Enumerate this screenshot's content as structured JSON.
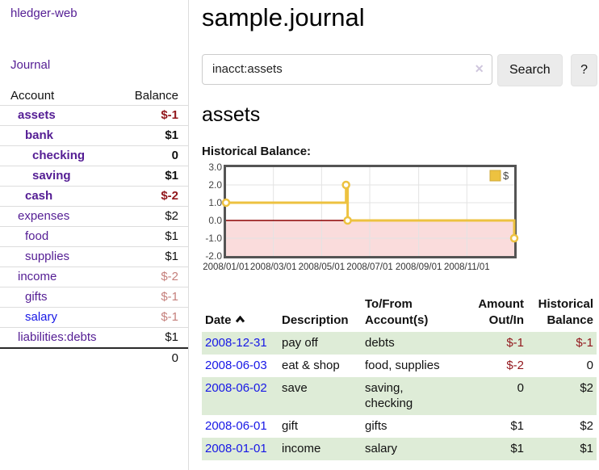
{
  "colors": {
    "accent_purple": "#541d94",
    "link_blue": "#1717e6",
    "negative_red": "#92171c",
    "faded_negative_red": "#c5807c",
    "row_green": "#deecd7",
    "chart_line_gold": "#edc240",
    "chart_negative_fill": "#fadcdc",
    "chart_zero_line": "#8b0000"
  },
  "brand": "hledger-web",
  "nav": {
    "journal": "Journal"
  },
  "sidebar": {
    "header": {
      "account": "Account",
      "balance": "Balance"
    },
    "accounts": [
      {
        "name": "assets",
        "balance": "$-1"
      },
      {
        "name": "bank",
        "balance": "$1"
      },
      {
        "name": "checking",
        "balance": "0"
      },
      {
        "name": "saving",
        "balance": "$1"
      },
      {
        "name": "cash",
        "balance": "$-2"
      },
      {
        "name": "expenses",
        "balance": "$2"
      },
      {
        "name": "food",
        "balance": "$1"
      },
      {
        "name": "supplies",
        "balance": "$1"
      },
      {
        "name": "income",
        "balance": "$-2"
      },
      {
        "name": "gifts",
        "balance": "$-1"
      },
      {
        "name": "salary",
        "balance": "$-1"
      },
      {
        "name": "liabilities:debts",
        "balance": "$1"
      }
    ],
    "total": "0"
  },
  "main": {
    "title": "sample.journal",
    "search": {
      "value": "inacct:assets",
      "clear_label": "✕",
      "search_button": "Search",
      "help_button": "?"
    },
    "account_heading": "assets"
  },
  "chart_data": {
    "type": "line",
    "title": "Historical Balance:",
    "style": "steps",
    "series": [
      {
        "name": "$",
        "color": "#edc240",
        "points": [
          [
            "2008/01/01",
            1
          ],
          [
            "2008/06/01",
            2
          ],
          [
            "2008/06/03",
            0
          ],
          [
            "2008/12/31",
            -1
          ]
        ]
      }
    ],
    "x_ticks": [
      "2008/01/01",
      "2008/03/01",
      "2008/05/01",
      "2008/07/01",
      "2008/09/01",
      "2008/11/01"
    ],
    "y_tick_labels": [
      "3.0",
      "2.0",
      "1.0",
      "0.0",
      "-1.0",
      "-2.0"
    ],
    "ylim": [
      -2,
      3
    ],
    "xlim": [
      "2008/01/01",
      "2008/12/31"
    ],
    "grid": true,
    "legend_position": "top-right",
    "zero_line_color": "#8b0000",
    "negative_region_fill": "#fadcdc"
  },
  "register": {
    "headers": {
      "date": "Date",
      "description": "Description",
      "tofrom": "To/From Account(s)",
      "amount": "Amount Out/In",
      "balance": "Historical Balance"
    },
    "rows": [
      {
        "date": "2008-12-31",
        "description": "pay off",
        "accounts": "debts",
        "amount": "$-1",
        "balance": "$-1"
      },
      {
        "date": "2008-06-03",
        "description": "eat & shop",
        "accounts": "food, supplies",
        "amount": "$-2",
        "balance": "0"
      },
      {
        "date": "2008-06-02",
        "description": "save",
        "accounts": "saving, checking",
        "amount": "0",
        "balance": "$2"
      },
      {
        "date": "2008-06-01",
        "description": "gift",
        "accounts": "gifts",
        "amount": "$1",
        "balance": "$2"
      },
      {
        "date": "2008-01-01",
        "description": "income",
        "accounts": "salary",
        "amount": "$1",
        "balance": "$1"
      }
    ]
  }
}
